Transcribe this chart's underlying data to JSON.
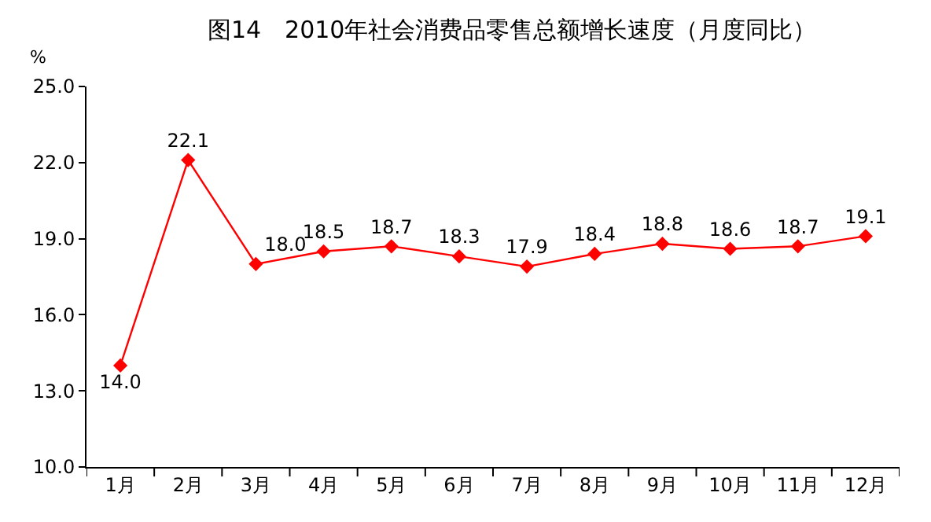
{
  "chart_data": {
    "type": "line",
    "title": "图14　2010年社会消费品零售总额增长速度（月度同比）",
    "ylabel": "%",
    "categories": [
      "1月",
      "2月",
      "3月",
      "4月",
      "5月",
      "6月",
      "7月",
      "8月",
      "9月",
      "10月",
      "11月",
      "12月"
    ],
    "series": [
      {
        "color": "#ff0000",
        "values": [
          14.0,
          22.1,
          18.0,
          18.5,
          18.7,
          18.3,
          17.9,
          18.4,
          18.8,
          18.6,
          18.7,
          19.1
        ],
        "value_labels": [
          "14.0",
          "22.1",
          "18.0",
          "18.5",
          "18.7",
          "18.3",
          "17.9",
          "18.4",
          "18.8",
          "18.6",
          "18.7",
          "19.1"
        ]
      }
    ],
    "ylim": [
      10,
      25
    ],
    "yticks": [
      {
        "value": 10,
        "label": "10.0"
      },
      {
        "value": 13,
        "label": "13.0"
      },
      {
        "value": 16,
        "label": "16.0"
      },
      {
        "value": 19,
        "label": "19.0"
      },
      {
        "value": 22,
        "label": "22.0"
      },
      {
        "value": 25,
        "label": "25.0"
      }
    ],
    "legend": false,
    "marker": "diamond",
    "line_style": "solid"
  }
}
